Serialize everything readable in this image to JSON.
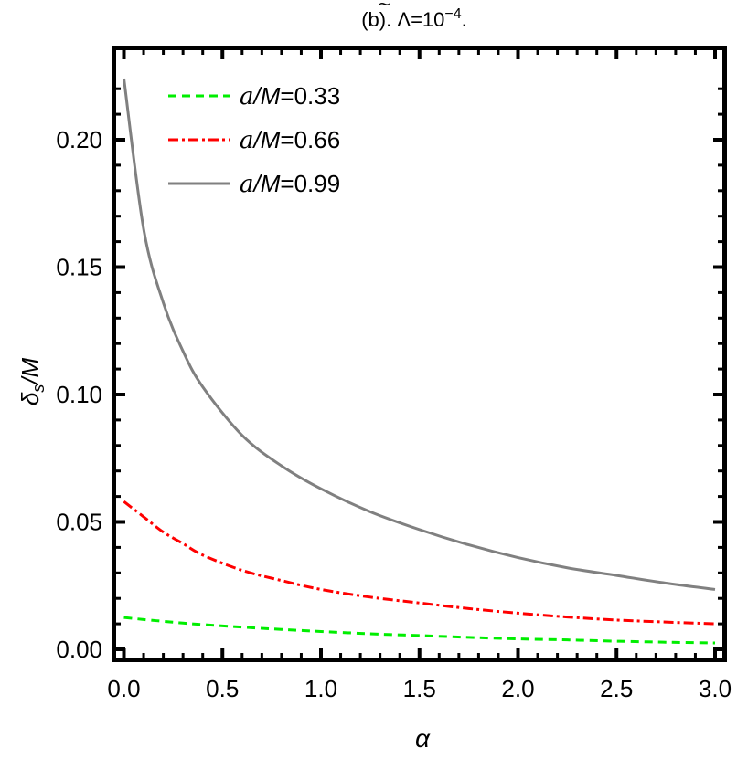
{
  "chart_data": {
    "type": "line",
    "title": "(b). Λ̃=10⁻⁴.",
    "title_parts": {
      "prefix": "(b). ",
      "symbol": "Λ",
      "tilde": "~",
      "eq": "=10",
      "exp": "−4",
      "suffix": "."
    },
    "xlabel": "α",
    "ylabel": "δs/M",
    "ylabel_parts": {
      "main": "δ",
      "sub": "s",
      "rest": "/M"
    },
    "xlim": [
      0.0,
      3.0
    ],
    "ylim": [
      0.0,
      0.225
    ],
    "x_ticks": [
      "0.0",
      "0.5",
      "1.0",
      "1.5",
      "2.0",
      "2.5",
      "3.0"
    ],
    "y_ticks": [
      "0.00",
      "0.05",
      "0.10",
      "0.15",
      "0.20"
    ],
    "grid": false,
    "legend_position": "upper-left inside",
    "x": [
      0.0,
      0.1,
      0.2,
      0.3,
      0.4,
      0.6,
      0.8,
      1.0,
      1.25,
      1.5,
      1.75,
      2.0,
      2.25,
      2.5,
      2.75,
      3.0
    ],
    "series": [
      {
        "name": "a/M=0.33",
        "color": "#00ee00",
        "style": "dashed",
        "values": [
          0.0125,
          0.0117,
          0.011,
          0.0103,
          0.0097,
          0.0087,
          0.0078,
          0.007,
          0.0061,
          0.0054,
          0.0047,
          0.0041,
          0.0037,
          0.0032,
          0.0028,
          0.0025
        ]
      },
      {
        "name": "a/M=0.66",
        "color": "#ff0000",
        "style": "dash-dot",
        "values": [
          0.058,
          0.052,
          0.046,
          0.0415,
          0.037,
          0.031,
          0.027,
          0.0235,
          0.0205,
          0.0182,
          0.016,
          0.0142,
          0.0127,
          0.0115,
          0.0107,
          0.01
        ]
      },
      {
        "name": "a/M=0.99",
        "color": "#808080",
        "style": "solid",
        "values": [
          0.224,
          0.165,
          0.136,
          0.117,
          0.103,
          0.084,
          0.072,
          0.063,
          0.054,
          0.047,
          0.041,
          0.036,
          0.032,
          0.029,
          0.026,
          0.0235
        ]
      }
    ]
  },
  "legend": {
    "items": [
      {
        "prefix": "a",
        "rest": "/M",
        "value": "=0.33"
      },
      {
        "prefix": "a",
        "rest": "/M",
        "value": "=0.66"
      },
      {
        "prefix": "a",
        "rest": "/M",
        "value": "=0.99"
      }
    ]
  }
}
